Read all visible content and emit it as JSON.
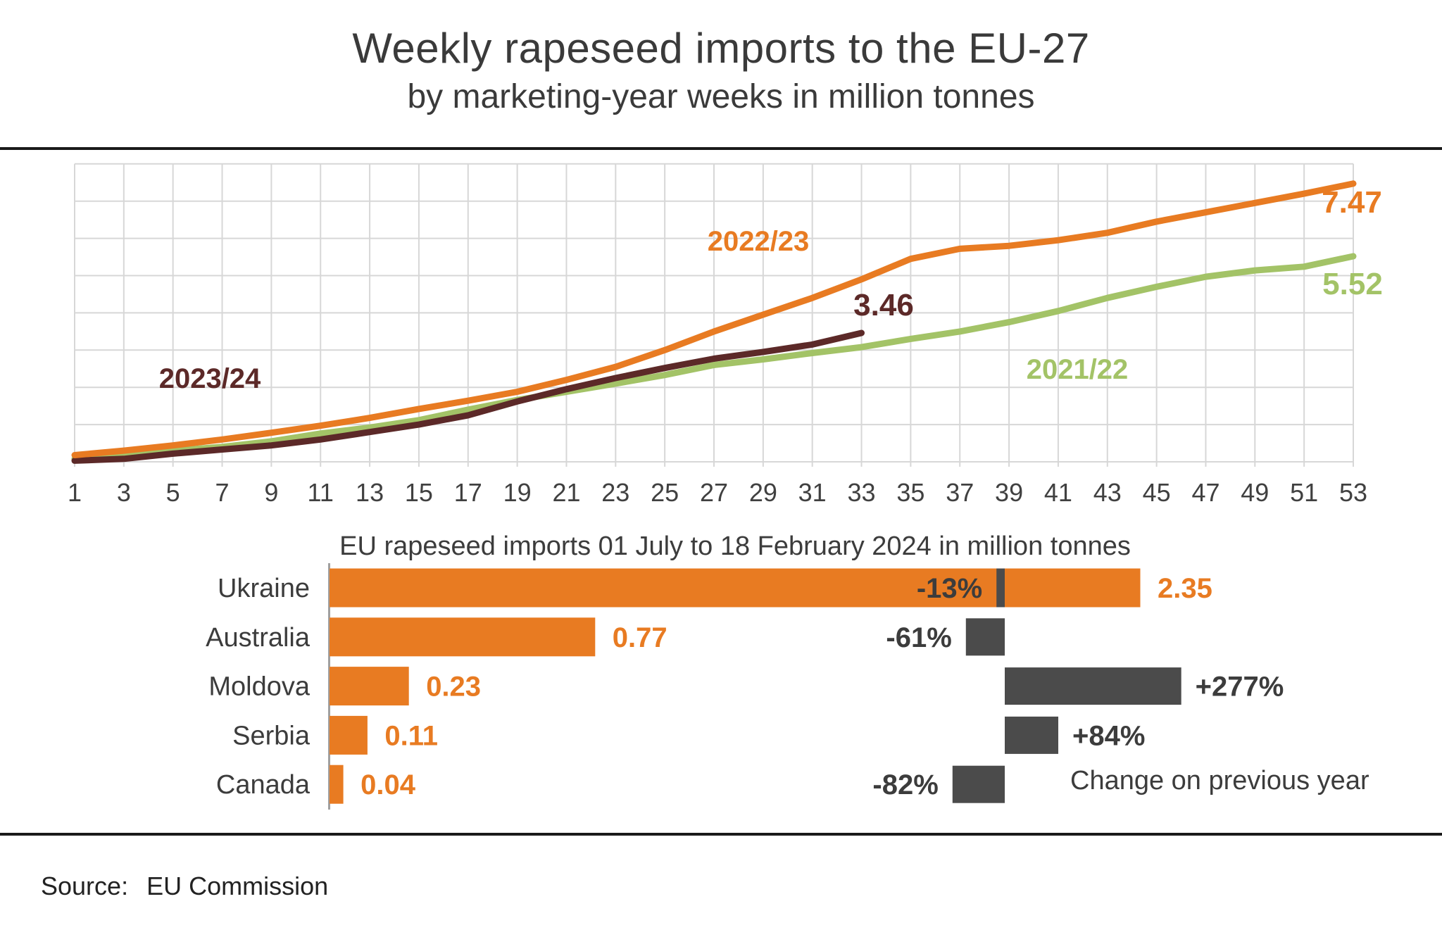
{
  "title": "Weekly rapeseed imports to the EU-27",
  "subtitle": "by marketing-year weeks in million tonnes",
  "chart_data": [
    {
      "type": "line",
      "title": "Weekly rapeseed imports to the EU-27",
      "subtitle": "by marketing-year weeks in million tonnes",
      "xlabel": "marketing-year week",
      "ylabel": "million tonnes",
      "xlim": [
        1,
        53
      ],
      "ylim": [
        0,
        8
      ],
      "grid": true,
      "x_ticks": [
        1,
        3,
        5,
        7,
        9,
        11,
        13,
        15,
        17,
        19,
        21,
        23,
        25,
        27,
        29,
        31,
        33,
        35,
        37,
        39,
        41,
        43,
        45,
        47,
        49,
        51,
        53
      ],
      "series": [
        {
          "name": "2021/22",
          "color": "#a3c367",
          "end_label": "5.52",
          "x": [
            1,
            3,
            5,
            7,
            9,
            11,
            13,
            15,
            17,
            19,
            21,
            23,
            25,
            27,
            29,
            31,
            33,
            35,
            37,
            39,
            41,
            43,
            45,
            47,
            49,
            51,
            53
          ],
          "values": [
            0.08,
            0.16,
            0.3,
            0.4,
            0.55,
            0.76,
            0.92,
            1.12,
            1.4,
            1.66,
            1.88,
            2.1,
            2.33,
            2.6,
            2.75,
            2.92,
            3.08,
            3.3,
            3.5,
            3.75,
            4.05,
            4.4,
            4.7,
            4.97,
            5.14,
            5.24,
            5.52
          ]
        },
        {
          "name": "2023/24",
          "color": "#5c2928",
          "end_label": "3.46",
          "x": [
            1,
            3,
            5,
            7,
            9,
            11,
            13,
            15,
            17,
            19,
            21,
            23,
            25,
            27,
            29,
            31,
            33
          ],
          "values": [
            0.03,
            0.08,
            0.22,
            0.33,
            0.44,
            0.6,
            0.8,
            1.0,
            1.25,
            1.62,
            1.95,
            2.25,
            2.52,
            2.77,
            2.95,
            3.15,
            3.46
          ]
        },
        {
          "name": "2022/23",
          "color": "#e87b22",
          "end_label": "7.47",
          "x": [
            1,
            3,
            5,
            7,
            9,
            11,
            13,
            15,
            17,
            19,
            21,
            23,
            25,
            27,
            29,
            31,
            33,
            35,
            37,
            39,
            41,
            43,
            45,
            47,
            49,
            51,
            53
          ],
          "values": [
            0.18,
            0.3,
            0.44,
            0.6,
            0.78,
            0.97,
            1.18,
            1.42,
            1.64,
            1.88,
            2.2,
            2.55,
            3.0,
            3.5,
            3.95,
            4.4,
            4.9,
            5.45,
            5.72,
            5.8,
            5.95,
            6.15,
            6.45,
            6.7,
            6.95,
            7.2,
            7.47
          ]
        }
      ]
    },
    {
      "type": "bar",
      "title": "EU rapeseed imports 01 July to 18 February 2024 in million tonnes",
      "categories": [
        "Ukraine",
        "Australia",
        "Moldova",
        "Serbia",
        "Canada"
      ],
      "values": [
        2.35,
        0.77,
        0.23,
        0.11,
        0.04
      ],
      "value_labels": [
        "2.35",
        "0.77",
        "0.23",
        "0.11",
        "0.04"
      ],
      "change_pct": [
        -13,
        -61,
        277,
        84,
        -82
      ],
      "change_labels": [
        "-13%",
        "-61%",
        "+277%",
        "+84%",
        "-82%"
      ],
      "note": "Change on previous year",
      "bar_color": "#e87b22",
      "change_color": "#4b4b4b",
      "label_color": "#3c3c3c"
    }
  ],
  "source": {
    "label": "Source:",
    "value": "EU Commission"
  }
}
